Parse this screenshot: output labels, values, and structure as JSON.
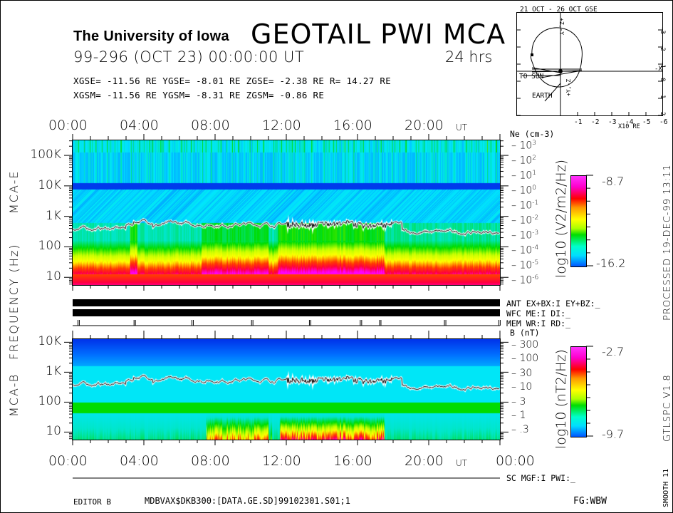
{
  "header": {
    "institution": "The University of Iowa",
    "title": "GEOTAIL PWI MCA",
    "datetime": "99-296 (OCT 23) 00:00:00 UT",
    "span": "24 hrs",
    "gse": "XGSE= -11.56 RE   YGSE=  -8.01 RE   ZGSE=  -2.38 RE   R= 14.27 RE",
    "gsm": "XGSM= -11.56 RE   YGSM=  -8.31 RE   ZGSM=  -0.86 RE"
  },
  "orbit": {
    "title": "21 OCT - 26 OCT  GSE",
    "x_axis_label": "X10 RE",
    "x_ticks": [
      "-1",
      "-2",
      "-3",
      "-4",
      "-5",
      "-6"
    ],
    "y_ticks": [
      "-3",
      "-2",
      "-1",
      "0",
      "1",
      "2"
    ],
    "axis_labels": {
      "minus_x": "-X",
      "plus_z": "+Z,-Y",
      "minus_z": "+Y,-Z"
    },
    "sun_label": "TO SUN",
    "earth_label": "EARTH"
  },
  "time_axis": {
    "labels": [
      "00:00",
      "04:00",
      "08:00",
      "12:00",
      "16:00",
      "20:00"
    ],
    "end_label": "00:00",
    "unit": "UT"
  },
  "side_label": "FREQUENCY (Hz)",
  "status": {
    "ant": "ANT EX+BX:I EY+BZ:_",
    "wfc": "WFC ME:I    DI:_",
    "mem": "MEM WR:I    RD:_",
    "sc": "SC MGF:I   PWI:_"
  },
  "footer": {
    "editor": "EDITOR B",
    "file": "MDBVAX$DKB300:[DATA.GE.SD]99102301.S01;1",
    "fg": "FG:WBW"
  },
  "margin_right": {
    "processed": "PROCESSED 19-DEC-99  13:11",
    "version": "GTLSPC   V1.8",
    "smooth": "SMOOTH 11"
  },
  "chart_data": [
    {
      "type": "heatmap",
      "title": "MCA-E",
      "xlabel": "UT",
      "ylabel": "Frequency (Hz)",
      "x_range_hours": [
        0,
        24
      ],
      "y_scale": "log",
      "y_range_hz": [
        5.6,
        311000
      ],
      "y_tick_labels": [
        "10",
        "100",
        "1K",
        "10K",
        "100K"
      ],
      "right_axis": {
        "label": "Ne (cm-3)",
        "ticks": [
          "10^3",
          "10^2",
          "10^1",
          "10^0",
          "10^-1",
          "10^-2",
          "10^-3",
          "10^-4",
          "10^-5",
          "10^-6"
        ]
      },
      "colorbar": {
        "label": "log10 (V2/m2/Hz)",
        "max": -8.7,
        "min": -16.2
      },
      "overlay_line": "electron cyclotron / plasma frequency trace ~300-600 Hz"
    },
    {
      "type": "heatmap",
      "title": "MCA-B",
      "xlabel": "UT",
      "ylabel": "Frequency (Hz)",
      "x_range_hours": [
        0,
        24
      ],
      "y_scale": "log",
      "y_range_hz": [
        5.6,
        12700
      ],
      "y_tick_labels": [
        "10",
        "100",
        "1K",
        "10K"
      ],
      "right_axis": {
        "label": "B (nT)",
        "ticks": [
          "300",
          "100",
          "30",
          "10",
          "3",
          "1",
          ".3"
        ]
      },
      "colorbar": {
        "label": "log10 (nT2/Hz)",
        "max": -2.7,
        "min": -9.7
      },
      "overlay_line": "electron cyclotron frequency trace ~300-600 Hz"
    }
  ],
  "mem_marks_hours": [
    0.3,
    3.5,
    6.8,
    10.2,
    13.5,
    16.4,
    17.5,
    21.2,
    24.3
  ]
}
